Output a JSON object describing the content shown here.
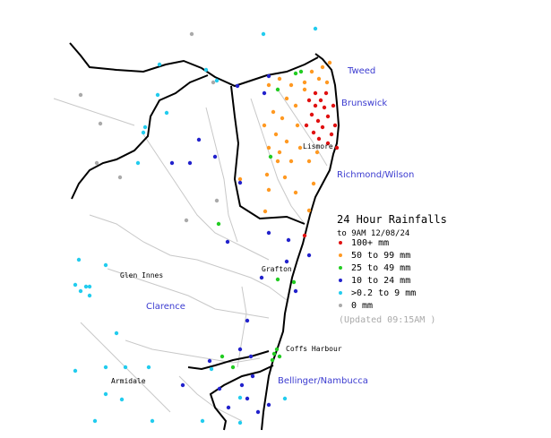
{
  "map": {
    "title": "24 Hour Rainfalls",
    "subtitle": "to 9AM 12/08/24",
    "legend": [
      {
        "label": "100+ mm",
        "color": "#e01010"
      },
      {
        "label": "50  to 99 mm",
        "color": "#ff9922"
      },
      {
        "label": "25  to 49 mm",
        "color": "#22cc22"
      },
      {
        "label": "10  to 24 mm",
        "color": "#2222cc"
      },
      {
        "label": ">0.2 to 9 mm",
        "color": "#22ccee"
      },
      {
        "label": "0 mm",
        "color": "#aaaaaa"
      }
    ],
    "updated": "(Updated 09:15AM )",
    "regions": [
      "Tweed",
      "Brunswick",
      "Richmond/Wilson",
      "Clarence",
      "Bellinger/Nambucca"
    ],
    "towns": [
      "Lismore",
      "Grafton",
      "Glen Innes",
      "Coffs Harbour",
      "Armidale"
    ]
  }
}
